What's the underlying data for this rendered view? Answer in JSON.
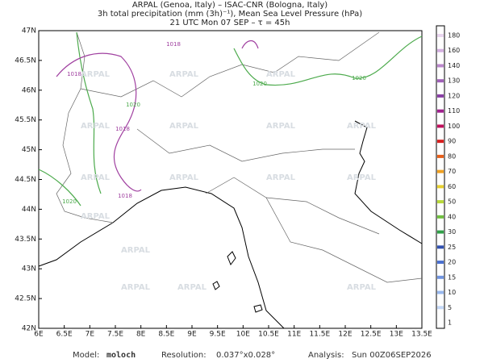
{
  "title_lines": [
    "ARPAL (Genoa, Italy)  –  ISAC-CNR (Bologna, Italy)",
    "3h total precipitation (mm (3h)⁻¹), Mean Sea Level Pressure (hPa)",
    "21 UTC Mon 07 SEP  –  τ = 45h"
  ],
  "map": {
    "lat_labels": [
      "47N",
      "46.5N",
      "46N",
      "45.5N",
      "45N",
      "44.5N",
      "44N",
      "43.5N",
      "43N",
      "42.5N",
      "42N"
    ],
    "lon_labels": [
      "6E",
      "6.5E",
      "7E",
      "7.5E",
      "8E",
      "8.5E",
      "9E",
      "9.5E",
      "10E",
      "10.5E",
      "11E",
      "11.5E",
      "12E",
      "12.5E",
      "13E",
      "13.5E"
    ],
    "watermark": "ARPAL",
    "contour_labels": [
      "1018",
      "1020"
    ]
  },
  "colorbar": {
    "levels": [
      180,
      160,
      140,
      130,
      120,
      110,
      100,
      90,
      80,
      70,
      60,
      50,
      40,
      30,
      25,
      20,
      15,
      10,
      5,
      1
    ],
    "colors": [
      "#e9d6ef",
      "#d4b0e0",
      "#bb88cc",
      "#a060b8",
      "#8a3fa6",
      "#a0208e",
      "#c0105c",
      "#d81e1e",
      "#e8601a",
      "#f0a020",
      "#e8d030",
      "#b8d838",
      "#70c040",
      "#30a048",
      "#3050b0",
      "#4a70d0",
      "#7094e0",
      "#98b8ee",
      "#c4d8f6",
      "#ffffff"
    ]
  },
  "footer": {
    "model_label": "Model:",
    "model": "moloch",
    "resolution_label": "Resolution:",
    "resolution": "0.037°x0.028°",
    "analysis_label": "Analysis:",
    "analysis": "Sun 00Z06SEP2026"
  }
}
